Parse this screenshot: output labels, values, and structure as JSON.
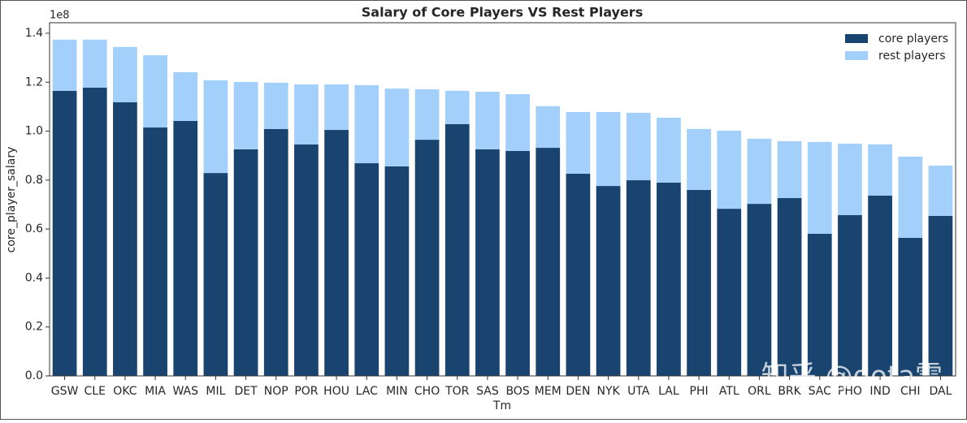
{
  "chart_data": {
    "type": "stacked_bar",
    "title": "Salary of Core Players VS Rest Players",
    "x_label": "Tm",
    "y_label": "core_player_salary",
    "y_offset_label": "1e8",
    "watermark": "知乎 @dota雷",
    "categories": [
      "GSW",
      "CLE",
      "OKC",
      "MIA",
      "WAS",
      "MIL",
      "DET",
      "NOP",
      "POR",
      "HOU",
      "LAC",
      "MIN",
      "CHO",
      "TOR",
      "SAS",
      "BOS",
      "MEM",
      "DEN",
      "NYK",
      "UTA",
      "LAL",
      "PHI",
      "ATL",
      "ORL",
      "BRK",
      "SAC",
      "PHO",
      "IND",
      "CHI",
      "DAL"
    ],
    "series": [
      {
        "name": "core players",
        "color": "#1a4470",
        "values": [
          1.165,
          1.178,
          1.118,
          1.015,
          1.042,
          0.829,
          0.926,
          1.009,
          0.946,
          1.005,
          0.869,
          0.856,
          0.965,
          1.029,
          0.926,
          0.919,
          0.932,
          0.826,
          0.776,
          0.8,
          0.79,
          0.76,
          0.683,
          0.703,
          0.727,
          0.581,
          0.657,
          0.737,
          0.564,
          0.654
        ]
      },
      {
        "name": "rest players",
        "color": "#a3cffb",
        "values": [
          0.209,
          0.196,
          0.226,
          0.295,
          0.199,
          0.379,
          0.275,
          0.189,
          0.245,
          0.186,
          0.319,
          0.318,
          0.206,
          0.136,
          0.235,
          0.232,
          0.17,
          0.252,
          0.302,
          0.275,
          0.265,
          0.249,
          0.319,
          0.266,
          0.232,
          0.375,
          0.292,
          0.209,
          0.332,
          0.205
        ]
      }
    ],
    "ylim": [
      0,
      1.443
    ],
    "yticks": [
      {
        "value": 0,
        "label": "0.0"
      },
      0.2,
      0.4,
      0.6,
      0.8,
      {
        "value": 1,
        "label": "1.0"
      },
      1.2,
      1.4
    ],
    "legend": "upper right",
    "grid": false
  }
}
